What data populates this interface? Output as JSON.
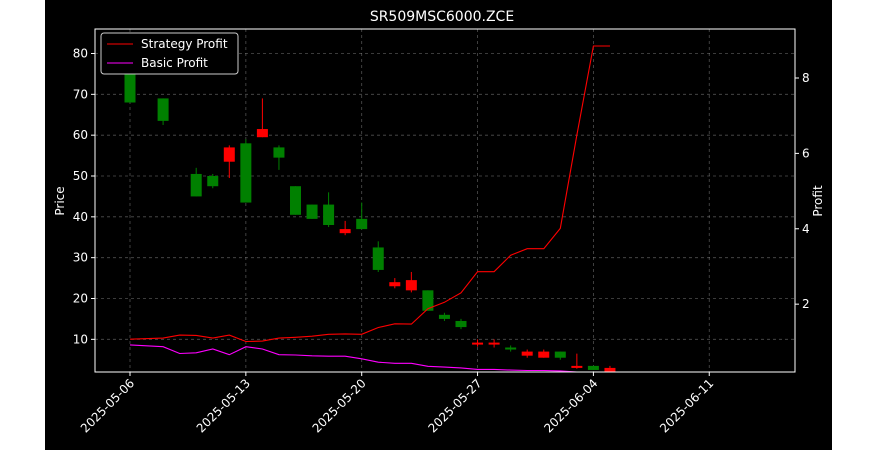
{
  "chart_data": {
    "type": "candlestick",
    "title": "SR509MSC6000.ZCE",
    "xlabel": "",
    "ylabel_left": "Price",
    "ylabel_right": "Profit",
    "ylim_left": [
      2,
      86
    ],
    "ylim_right": [
      0.2,
      9.3
    ],
    "yticks_left": [
      10,
      20,
      30,
      40,
      50,
      60,
      70,
      80
    ],
    "yticks_right": [
      2,
      4,
      6,
      8
    ],
    "xticks": [
      "2025-05-06",
      "2025-05-13",
      "2025-05-20",
      "2025-05-27",
      "2025-06-04",
      "2025-06-11"
    ],
    "grid": true,
    "legend_position": "upper-left",
    "colors": {
      "up": "#ff0000",
      "down": "#008000",
      "strategy": "#ff0000",
      "basic": "#ff00ff",
      "background": "#000000",
      "text": "#ffffff"
    },
    "candles": [
      {
        "i": 0,
        "open": 84.5,
        "close": 68.0,
        "high": 85.0,
        "low": 68.0
      },
      {
        "i": 2,
        "open": 69.0,
        "close": 63.5,
        "high": 69.0,
        "low": 62.5
      },
      {
        "i": 4,
        "open": 50.5,
        "close": 45.0,
        "high": 52.0,
        "low": 45.0
      },
      {
        "i": 5,
        "open": 50.0,
        "close": 47.5,
        "high": 50.5,
        "low": 47.0
      },
      {
        "i": 6,
        "open": 53.5,
        "close": 57.0,
        "high": 57.5,
        "low": 49.5
      },
      {
        "i": 7,
        "open": 58.0,
        "close": 43.5,
        "high": 59.0,
        "low": 43.5
      },
      {
        "i": 8,
        "open": 59.5,
        "close": 61.5,
        "high": 69.0,
        "low": 59.5
      },
      {
        "i": 9,
        "open": 57.0,
        "close": 54.5,
        "high": 57.5,
        "low": 51.5
      },
      {
        "i": 10,
        "open": 47.5,
        "close": 40.5,
        "high": 47.5,
        "low": 40.5
      },
      {
        "i": 11,
        "open": 43.0,
        "close": 39.5,
        "high": 43.0,
        "low": 39.5
      },
      {
        "i": 12,
        "open": 43.0,
        "close": 38.0,
        "high": 46.0,
        "low": 37.5
      },
      {
        "i": 13,
        "open": 36.0,
        "close": 37.0,
        "high": 39.0,
        "low": 35.5
      },
      {
        "i": 14,
        "open": 39.5,
        "close": 37.0,
        "high": 43.5,
        "low": 37.0
      },
      {
        "i": 15,
        "open": 32.5,
        "close": 27.0,
        "high": 34.0,
        "low": 26.5
      },
      {
        "i": 16,
        "open": 23.0,
        "close": 24.0,
        "high": 25.0,
        "low": 22.5
      },
      {
        "i": 17,
        "open": 22.0,
        "close": 24.5,
        "high": 26.5,
        "low": 21.5
      },
      {
        "i": 18,
        "open": 22.0,
        "close": 17.0,
        "high": 22.0,
        "low": 17.0
      },
      {
        "i": 19,
        "open": 16.0,
        "close": 15.0,
        "high": 16.5,
        "low": 14.5
      },
      {
        "i": 20,
        "open": 14.5,
        "close": 13.0,
        "high": 15.0,
        "low": 12.5
      },
      {
        "i": 21,
        "open": 8.8,
        "close": 9.2,
        "high": 10.0,
        "low": 8.2
      },
      {
        "i": 22,
        "open": 8.8,
        "close": 9.2,
        "high": 10.0,
        "low": 8.0
      },
      {
        "i": 23,
        "open": 8.0,
        "close": 7.5,
        "high": 8.5,
        "low": 7.0
      },
      {
        "i": 24,
        "open": 6.0,
        "close": 7.0,
        "high": 7.5,
        "low": 5.5
      },
      {
        "i": 25,
        "open": 5.5,
        "close": 7.0,
        "high": 7.5,
        "low": 5.5
      },
      {
        "i": 26,
        "open": 7.0,
        "close": 5.5,
        "high": 7.0,
        "low": 5.0
      },
      {
        "i": 27,
        "open": 3.0,
        "close": 3.5,
        "high": 6.5,
        "low": 2.8
      },
      {
        "i": 28,
        "open": 3.5,
        "close": 2.5,
        "high": 3.5,
        "low": 2.5
      },
      {
        "i": 29,
        "open": 2.0,
        "close": 3.0,
        "high": 3.5,
        "low": 2.0
      }
    ],
    "series": [
      {
        "name": "Strategy Profit",
        "i": [
          0,
          2,
          3,
          4,
          5,
          6,
          7,
          8,
          9,
          10,
          11,
          12,
          13,
          14,
          15,
          16,
          17,
          18,
          19,
          20,
          21,
          22,
          23,
          24,
          25,
          26,
          27,
          28,
          29
        ],
        "values": [
          1.07,
          1.1,
          1.18,
          1.17,
          1.1,
          1.18,
          1.01,
          1.02,
          1.1,
          1.12,
          1.15,
          1.2,
          1.21,
          1.2,
          1.38,
          1.48,
          1.47,
          1.88,
          2.05,
          2.3,
          2.86,
          2.86,
          3.3,
          3.47,
          3.47,
          4.01,
          6.49,
          8.85,
          8.85
        ]
      },
      {
        "name": "Basic Profit",
        "i": [
          0,
          2,
          3,
          4,
          5,
          6,
          7,
          8,
          9,
          10,
          11,
          12,
          13,
          14,
          15,
          16,
          17,
          18,
          19,
          20,
          21,
          22,
          23,
          24,
          25,
          26,
          27
        ],
        "values": [
          0.92,
          0.87,
          0.69,
          0.71,
          0.81,
          0.66,
          0.87,
          0.81,
          0.66,
          0.65,
          0.63,
          0.62,
          0.62,
          0.55,
          0.46,
          0.43,
          0.43,
          0.35,
          0.33,
          0.31,
          0.27,
          0.27,
          0.25,
          0.24,
          0.24,
          0.23,
          0.2
        ]
      }
    ]
  }
}
